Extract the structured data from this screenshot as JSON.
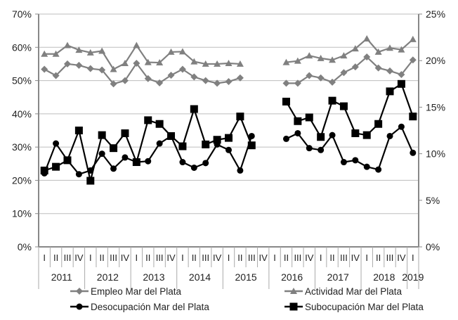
{
  "chart_data": {
    "type": "line",
    "title": "",
    "xlabel": "",
    "ylabel": "",
    "ylim_left": [
      0,
      70
    ],
    "ylim_right": [
      0,
      25
    ],
    "left_ticks": [
      "0%",
      "10%",
      "20%",
      "30%",
      "40%",
      "50%",
      "60%",
      "70%"
    ],
    "right_ticks": [
      "0%",
      "5%",
      "10%",
      "15%",
      "20%",
      "25%"
    ],
    "grid": true,
    "legend_position": "bottom",
    "years": [
      "2011",
      "2012",
      "2013",
      "2014",
      "2015",
      "2016",
      "2017",
      "2018",
      "2019"
    ],
    "quarter_labels": [
      "I",
      "II",
      "III",
      "IV"
    ],
    "categories": [
      "2011 I",
      "2011 II",
      "2011 III",
      "2011 IV",
      "2012 I",
      "2012 II",
      "2012 III",
      "2012 IV",
      "2013 I",
      "2013 II",
      "2013 III",
      "2013 IV",
      "2014 I",
      "2014 II",
      "2014 III",
      "2014 IV",
      "2015 I",
      "2015 II",
      "2015 III",
      "2015 IV",
      "2016 I",
      "2016 II",
      "2016 III",
      "2016 IV",
      "2017 I",
      "2017 II",
      "2017 III",
      "2017 IV",
      "2018 I",
      "2018 II",
      "2018 III",
      "2018 IV",
      "2019 I"
    ],
    "series": [
      {
        "name": "Empleo Mar del Plata",
        "axis": "left",
        "marker": "diamond",
        "color": "#808080",
        "values": [
          53.4,
          51.5,
          55.0,
          54.6,
          53.6,
          53.2,
          49.0,
          50.0,
          55.2,
          50.6,
          49.3,
          51.6,
          53.4,
          51.1,
          50.0,
          49.2,
          49.7,
          50.8,
          null,
          null,
          null,
          49.2,
          49.2,
          51.5,
          50.8,
          49.5,
          52.4,
          54.1,
          57.1,
          53.8,
          52.9,
          51.8,
          56.2
        ]
      },
      {
        "name": "Actividad Mar del Plata",
        "axis": "left",
        "marker": "triangle",
        "color": "#808080",
        "values": [
          58.0,
          58.0,
          60.6,
          59.2,
          58.4,
          58.9,
          53.4,
          55.2,
          60.6,
          55.5,
          55.4,
          58.6,
          58.7,
          55.7,
          55.0,
          55.0,
          55.2,
          55.0,
          null,
          null,
          null,
          55.5,
          55.9,
          57.5,
          56.7,
          56.2,
          57.5,
          59.6,
          62.6,
          58.6,
          59.8,
          59.3,
          62.4
        ]
      },
      {
        "name": "Desocupación Mar del Plata",
        "axis": "right",
        "marker": "circle",
        "color": "#000000",
        "values": [
          7.9,
          11.1,
          9.3,
          7.8,
          8.2,
          10.0,
          8.4,
          9.6,
          9.1,
          9.2,
          11.1,
          11.9,
          9.1,
          8.5,
          9.0,
          11.0,
          10.4,
          8.2,
          11.9,
          null,
          null,
          11.6,
          12.2,
          10.6,
          10.4,
          12.0,
          9.1,
          9.3,
          8.6,
          8.3,
          11.9,
          12.9,
          10.1
        ]
      },
      {
        "name": "Subocupación Mar del Plata",
        "axis": "right",
        "marker": "square",
        "color": "#000000",
        "values": [
          8.2,
          8.6,
          9.3,
          12.5,
          7.1,
          12.0,
          10.6,
          12.2,
          9.1,
          13.6,
          13.2,
          11.9,
          10.8,
          14.8,
          11.0,
          11.5,
          11.7,
          14.0,
          10.9,
          null,
          null,
          15.6,
          13.5,
          13.9,
          11.8,
          15.7,
          15.1,
          12.2,
          12.0,
          13.2,
          16.7,
          17.5,
          14.0
        ]
      }
    ]
  }
}
